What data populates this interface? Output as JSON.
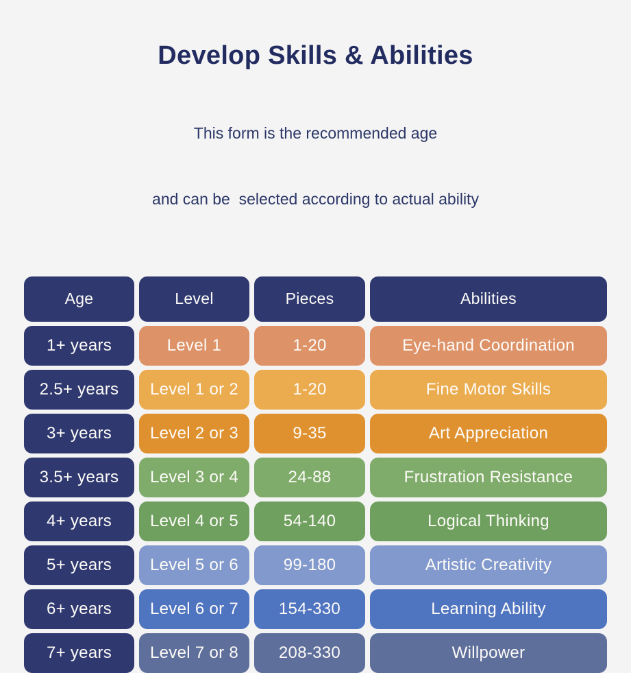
{
  "page": {
    "background": "#f5f4f4"
  },
  "header": {
    "title": "Develop Skills & Abilities",
    "subtitle_line1": "This form is the recommended age",
    "subtitle_line2": "and can be  selected according to actual ability",
    "title_color": "#222c60"
  },
  "table": {
    "header_color": "#2f3970",
    "age_column_color": "#2f3970",
    "columns": [
      "Age",
      "Level",
      "Pieces",
      "Abilities"
    ],
    "rows": [
      {
        "age": "1+ years",
        "level": "Level 1",
        "pieces": "1-20",
        "ability": "Eye-hand Coordination",
        "color": "#dd9268"
      },
      {
        "age": "2.5+ years",
        "level": "Level 1 or 2",
        "pieces": "1-20",
        "ability": "Fine Motor Skills",
        "color": "#ebac4f"
      },
      {
        "age": "3+ years",
        "level": "Level 2 or 3",
        "pieces": "9-35",
        "ability": "Art Appreciation",
        "color": "#e0912f"
      },
      {
        "age": "3.5+ years",
        "level": "Level 3 or 4",
        "pieces": "24-88",
        "ability": "Frustration Resistance",
        "color": "#7fac6b"
      },
      {
        "age": "4+ years",
        "level": "Level 4 or 5",
        "pieces": "54-140",
        "ability": "Logical Thinking",
        "color": "#6fa05f"
      },
      {
        "age": "5+ years",
        "level": "Level 5 or 6",
        "pieces": "99-180",
        "ability": "Artistic Creativity",
        "color": "#8199cc"
      },
      {
        "age": "6+ years",
        "level": "Level 6 or 7",
        "pieces": "154-330",
        "ability": "Learning Ability",
        "color": "#4f74c0"
      },
      {
        "age": "7+ years",
        "level": "Level 7 or 8",
        "pieces": "208-330",
        "ability": "Willpower",
        "color": "#5f6f9c"
      }
    ]
  },
  "chart_data": {
    "type": "table",
    "title": "Develop Skills & Abilities",
    "subtitle": "This form is the recommended age and can be selected according to actual ability",
    "columns": [
      "Age",
      "Level",
      "Pieces",
      "Abilities"
    ],
    "rows": [
      [
        "1+ years",
        "Level 1",
        "1-20",
        "Eye-hand Coordination"
      ],
      [
        "2.5+ years",
        "Level 1 or 2",
        "1-20",
        "Fine Motor Skills"
      ],
      [
        "3+ years",
        "Level 2 or 3",
        "9-35",
        "Art Appreciation"
      ],
      [
        "3.5+ years",
        "Level 3 or 4",
        "24-88",
        "Frustration Resistance"
      ],
      [
        "4+ years",
        "Level 4 or 5",
        "54-140",
        "Logical Thinking"
      ],
      [
        "5+ years",
        "Level 5 or 6",
        "99-180",
        "Artistic Creativity"
      ],
      [
        "6+ years",
        "Level 6 or 7",
        "154-330",
        "Learning Ability"
      ],
      [
        "7+ years",
        "Level 7 or 8",
        "208-330",
        "Willpower"
      ]
    ],
    "legend_position": "none",
    "grid": false
  }
}
